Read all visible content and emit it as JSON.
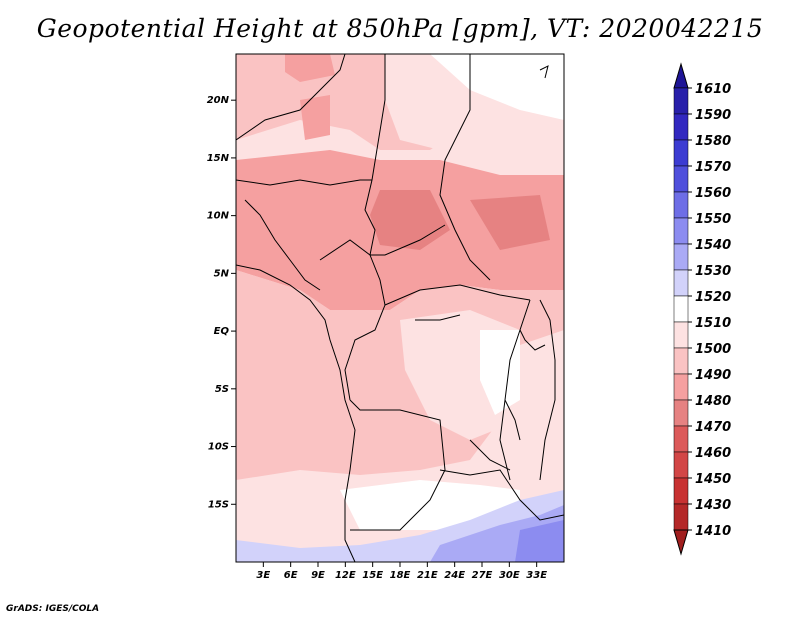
{
  "title": "Geopotential Height at 850hPa [gpm], VT: 2020042215",
  "credit": "GrADS: IGES/COLA",
  "map": {
    "lon_range": [
      0,
      36
    ],
    "lat_range": [
      -20,
      24
    ],
    "lat_ticks": [
      {
        "value": 20,
        "label": "20N"
      },
      {
        "value": 15,
        "label": "15N"
      },
      {
        "value": 10,
        "label": "10N"
      },
      {
        "value": 5,
        "label": "5N"
      },
      {
        "value": 0,
        "label": "EQ"
      },
      {
        "value": -5,
        "label": "5S"
      },
      {
        "value": -10,
        "label": "10S"
      },
      {
        "value": -15,
        "label": "15S"
      }
    ],
    "lon_ticks": [
      {
        "value": 3,
        "label": "3E"
      },
      {
        "value": 6,
        "label": "6E"
      },
      {
        "value": 9,
        "label": "9E"
      },
      {
        "value": 12,
        "label": "12E"
      },
      {
        "value": 15,
        "label": "15E"
      },
      {
        "value": 18,
        "label": "18E"
      },
      {
        "value": 21,
        "label": "21E"
      },
      {
        "value": 24,
        "label": "24E"
      },
      {
        "value": 27,
        "label": "27E"
      },
      {
        "value": 30,
        "label": "30E"
      },
      {
        "value": 33,
        "label": "33E"
      }
    ]
  },
  "colorbar": {
    "levels": [
      {
        "label": "1610",
        "color": "#1e1496"
      },
      {
        "label": "1590",
        "color": "#2820aa"
      },
      {
        "label": "1580",
        "color": "#3228c0"
      },
      {
        "label": "1570",
        "color": "#3c3cd2"
      },
      {
        "label": "1560",
        "color": "#5050dc"
      },
      {
        "label": "1550",
        "color": "#6e6ee6"
      },
      {
        "label": "1540",
        "color": "#8c8cf0"
      },
      {
        "label": "1530",
        "color": "#aaaaf5"
      },
      {
        "label": "1520",
        "color": "#d2d2fa"
      },
      {
        "label": "1510",
        "color": "#ffffff"
      },
      {
        "label": "1500",
        "color": "#fde2e2"
      },
      {
        "label": "1490",
        "color": "#fac3c3"
      },
      {
        "label": "1480",
        "color": "#f5a0a0"
      },
      {
        "label": "1470",
        "color": "#e68282"
      },
      {
        "label": "1460",
        "color": "#dc5a5a"
      },
      {
        "label": "1450",
        "color": "#d24646"
      },
      {
        "label": "1430",
        "color": "#c83232"
      },
      {
        "label": "1410",
        "color": "#b42828"
      },
      {
        "label": "",
        "color": "#a01e1e"
      }
    ]
  }
}
